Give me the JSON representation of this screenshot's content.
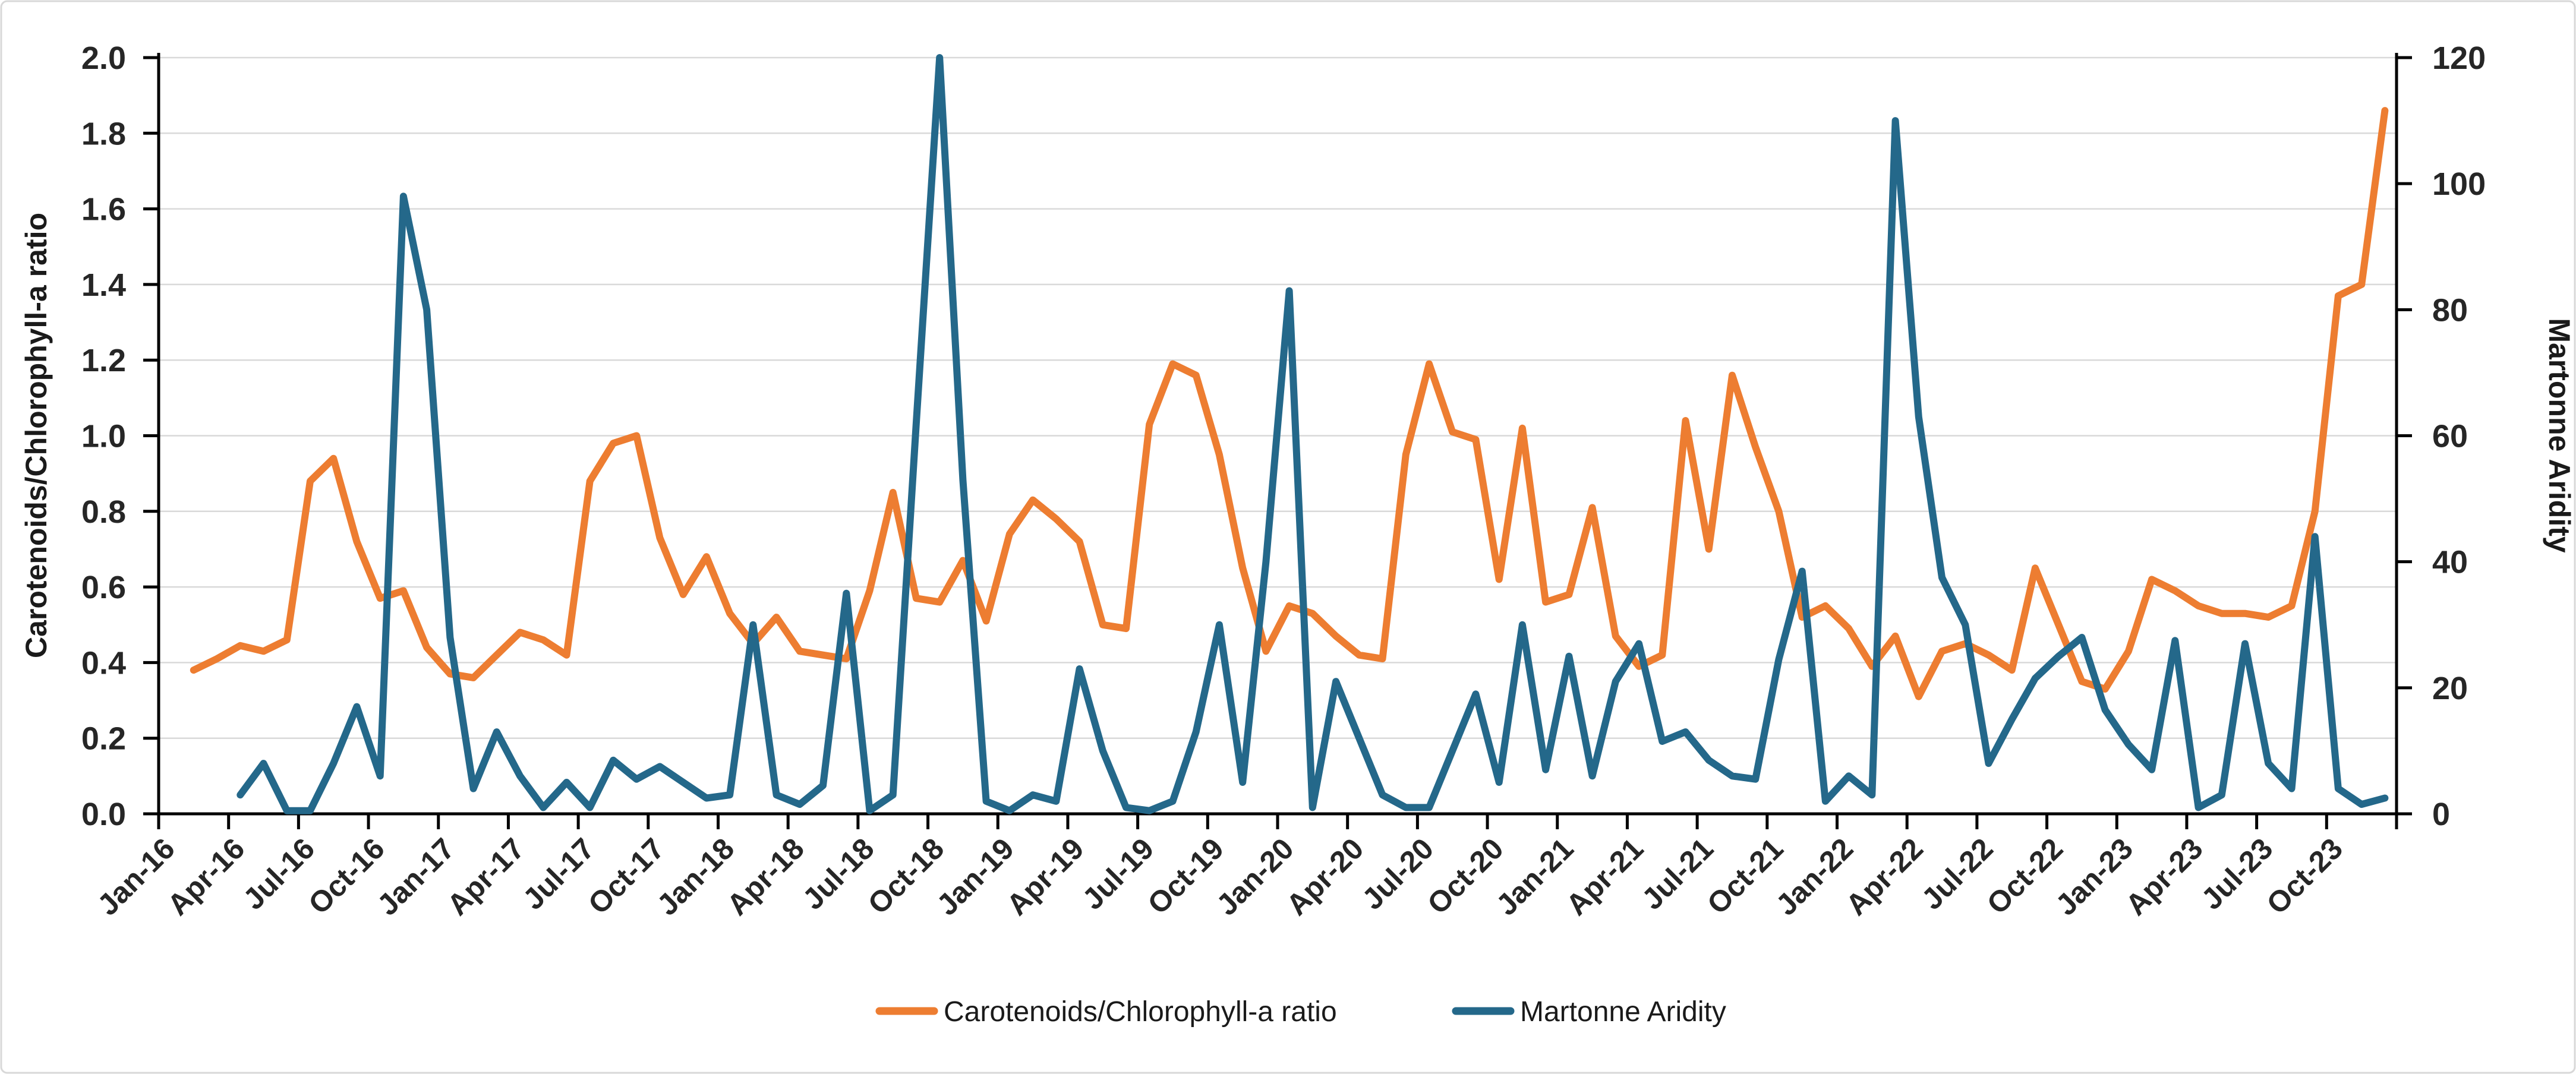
{
  "chart_data": {
    "type": "line",
    "title": "",
    "ylabel_left": "Carotenoids/Chlorophyll-a ratio",
    "ylabel_right": "Martonne Aridity",
    "y_left": {
      "min": 0.0,
      "max": 2.0,
      "step": 0.2,
      "tick_labels": [
        "0.0",
        "0.2",
        "0.4",
        "0.6",
        "0.8",
        "1.0",
        "1.2",
        "1.4",
        "1.6",
        "1.8",
        "2.0"
      ]
    },
    "y_right": {
      "min": 0,
      "max": 120,
      "step": 20,
      "tick_labels": [
        "0",
        "20",
        "40",
        "60",
        "80",
        "100",
        "120"
      ]
    },
    "x_tick_every_months": 3,
    "grid": true,
    "legend_position": "bottom-center",
    "categories": [
      "Jan-16",
      "Feb-16",
      "Mar-16",
      "Apr-16",
      "May-16",
      "Jun-16",
      "Jul-16",
      "Aug-16",
      "Sep-16",
      "Oct-16",
      "Nov-16",
      "Dec-16",
      "Jan-17",
      "Feb-17",
      "Mar-17",
      "Apr-17",
      "May-17",
      "Jun-17",
      "Jul-17",
      "Aug-17",
      "Sep-17",
      "Oct-17",
      "Nov-17",
      "Dec-17",
      "Jan-18",
      "Feb-18",
      "Mar-18",
      "Apr-18",
      "May-18",
      "Jun-18",
      "Jul-18",
      "Aug-18",
      "Sep-18",
      "Oct-18",
      "Nov-18",
      "Dec-18",
      "Jan-19",
      "Feb-19",
      "Mar-19",
      "Apr-19",
      "May-19",
      "Jun-19",
      "Jul-19",
      "Aug-19",
      "Sep-19",
      "Oct-19",
      "Nov-19",
      "Dec-19",
      "Jan-20",
      "Feb-20",
      "Mar-20",
      "Apr-20",
      "May-20",
      "Jun-20",
      "Jul-20",
      "Aug-20",
      "Sep-20",
      "Oct-20",
      "Nov-20",
      "Dec-20",
      "Jan-21",
      "Feb-21",
      "Mar-21",
      "Apr-21",
      "May-21",
      "Jun-21",
      "Jul-21",
      "Aug-21",
      "Sep-21",
      "Oct-21",
      "Nov-21",
      "Dec-21",
      "Jan-22",
      "Feb-22",
      "Mar-22",
      "Apr-22",
      "May-22",
      "Jun-22",
      "Jul-22",
      "Aug-22",
      "Sep-22",
      "Oct-22",
      "Nov-22",
      "Dec-22",
      "Jan-23",
      "Feb-23",
      "Mar-23",
      "Apr-23",
      "May-23",
      "Jun-23",
      "Jul-23",
      "Aug-23",
      "Sep-23",
      "Oct-23",
      "Nov-23",
      "Dec-23"
    ],
    "series": [
      {
        "name": "Carotenoids/Chlorophyll-a ratio",
        "axis": "left",
        "color": "#ED7D31",
        "values": [
          null,
          0.38,
          0.41,
          0.445,
          0.43,
          0.46,
          0.88,
          0.94,
          0.72,
          0.57,
          0.59,
          0.44,
          0.37,
          0.36,
          0.42,
          0.48,
          0.46,
          0.42,
          0.88,
          0.98,
          1.0,
          0.73,
          0.58,
          0.68,
          0.53,
          0.45,
          0.52,
          0.43,
          0.42,
          0.41,
          0.59,
          0.85,
          0.57,
          0.56,
          0.67,
          0.51,
          0.74,
          0.83,
          0.78,
          0.72,
          0.5,
          0.49,
          1.03,
          1.19,
          1.16,
          0.95,
          0.65,
          0.43,
          0.55,
          0.53,
          0.47,
          0.42,
          0.41,
          0.95,
          1.19,
          1.01,
          0.99,
          0.62,
          1.02,
          0.56,
          0.58,
          0.81,
          0.47,
          0.39,
          0.42,
          1.04,
          0.7,
          1.16,
          0.97,
          0.8,
          0.52,
          0.55,
          0.49,
          0.39,
          0.47,
          0.31,
          0.43,
          0.45,
          0.42,
          0.38,
          0.65,
          0.5,
          0.35,
          0.33,
          0.43,
          0.62,
          0.59,
          0.55,
          0.53,
          0.53,
          0.52,
          0.55,
          0.8,
          1.37,
          1.4,
          1.86
        ]
      },
      {
        "name": "Martonne Aridity",
        "axis": "right",
        "color": "#24688A",
        "values": [
          null,
          null,
          null,
          3,
          8,
          0.5,
          0.5,
          8,
          17,
          6,
          98,
          80,
          28,
          4,
          13,
          6,
          1,
          5,
          1,
          8.5,
          5.5,
          7.5,
          5,
          2.5,
          3,
          30,
          3,
          1.5,
          4.5,
          35,
          0.5,
          3,
          62,
          120,
          53,
          2,
          0.5,
          3,
          2,
          23,
          10,
          1,
          0.5,
          2,
          13,
          30,
          5,
          40,
          83,
          1,
          21,
          12,
          3,
          1,
          1,
          10,
          19,
          5,
          30,
          7,
          25,
          6,
          21,
          27,
          11.5,
          13,
          8.5,
          6,
          5.5,
          24.5,
          38.5,
          2,
          6,
          3,
          110,
          63,
          37.5,
          30,
          8,
          15,
          21.5,
          25,
          28,
          16.5,
          11,
          7,
          27.5,
          1,
          3,
          27,
          8,
          4,
          44,
          4,
          1.5,
          2.5
        ]
      }
    ]
  },
  "legend": {
    "series1": "Carotenoids/Chlorophyll-a ratio",
    "series2": "Martonne Aridity"
  },
  "style": {
    "grid_color": "#D9D9D9",
    "axis_color": "#000000",
    "tick_label_color": "#262626",
    "title_color": "#1a1a1a",
    "background": "#FFFFFF",
    "border_color": "#D8D8D8"
  }
}
